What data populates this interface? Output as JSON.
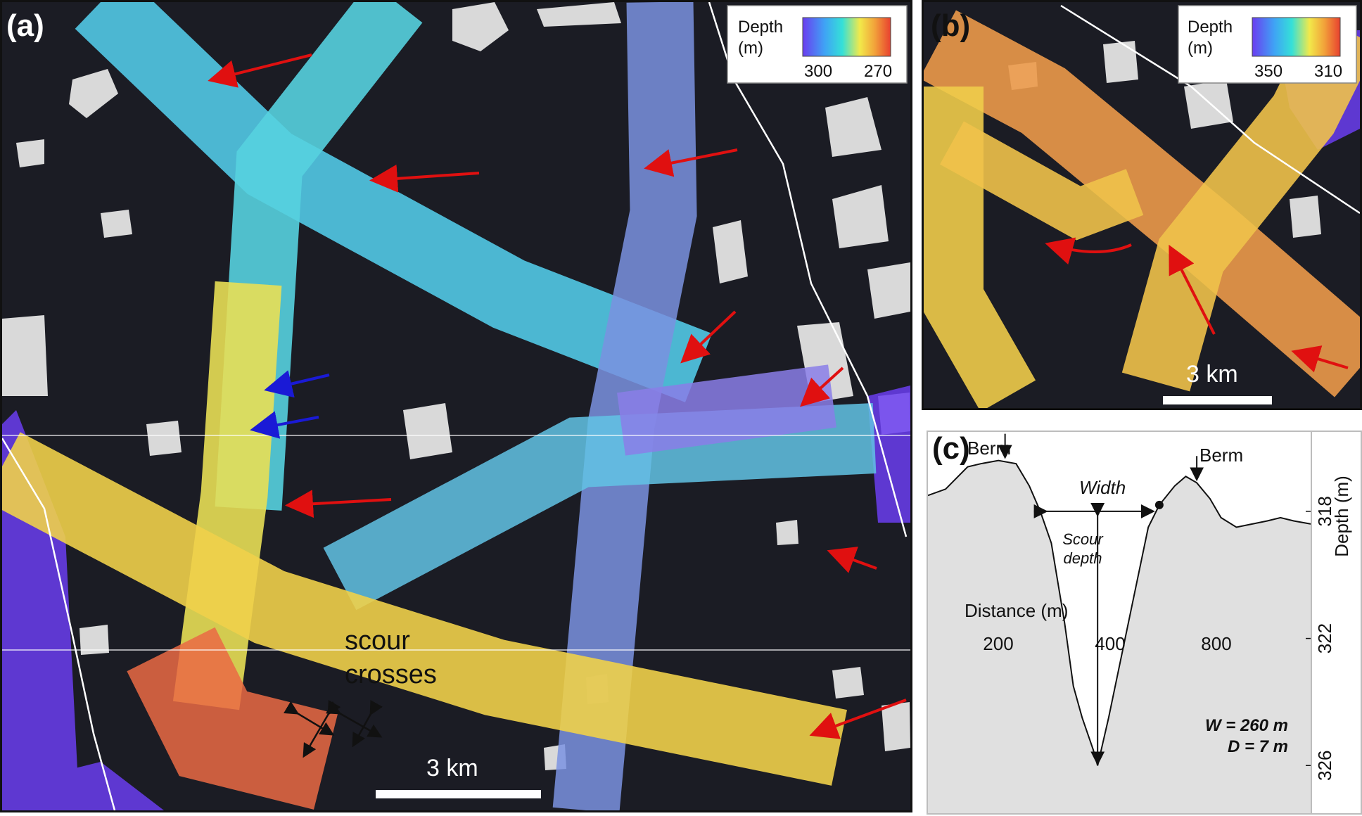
{
  "panel_a": {
    "label": "(a)",
    "legend": {
      "title_line1": "Depth",
      "title_line2": "(m)",
      "min_label": "300",
      "max_label": "270"
    },
    "annotation_line1": "scour",
    "annotation_line2": "crosses",
    "scalebar_label": "3 km"
  },
  "panel_b": {
    "label": "(b)",
    "legend": {
      "title_line1": "Depth",
      "title_line2": "(m)",
      "min_label": "350",
      "max_label": "310"
    },
    "scalebar_label": "3 km"
  },
  "panel_c": {
    "label": "(c)",
    "berm_left": "Berm",
    "berm_right": "Berm",
    "width_label": "Width",
    "scour_depth_line1": "Scour",
    "scour_depth_line2": "depth",
    "w_label": "W = 260 m",
    "d_label": "D = 7 m"
  },
  "colors": {
    "colormap": [
      "#6a3df0",
      "#3fa3f5",
      "#35e0d8",
      "#f2e94a",
      "#f2a23a",
      "#e8402f"
    ],
    "seafloor_dark": "#1b1c24",
    "iceberg": "#d9d9d9",
    "arrow_red": "#e01010",
    "arrow_blue": "#1a1ad6"
  },
  "chart_data": {
    "type": "line",
    "title": "",
    "xlabel": "Distance (m)",
    "ylabel": "Depth (m)",
    "x_ticks": [
      200,
      400,
      800
    ],
    "y_ticks": [
      318,
      322,
      326
    ],
    "ylim": [
      315.5,
      327.5
    ],
    "y_inverted": true,
    "profile_points": [
      [
        0,
        317.5
      ],
      [
        40,
        317.3
      ],
      [
        90,
        316.6
      ],
      [
        120,
        316.5
      ],
      [
        160,
        316.4
      ],
      [
        200,
        316.5
      ],
      [
        230,
        317.2
      ],
      [
        255,
        318.0
      ],
      [
        280,
        319.0
      ],
      [
        310,
        321.5
      ],
      [
        330,
        323.5
      ],
      [
        350,
        324.5
      ],
      [
        375,
        325.5
      ],
      [
        385,
        326.0
      ],
      [
        410,
        324.5
      ],
      [
        440,
        322.5
      ],
      [
        470,
        320.5
      ],
      [
        500,
        318.5
      ],
      [
        525,
        317.8
      ],
      [
        560,
        317.2
      ],
      [
        585,
        316.9
      ],
      [
        610,
        317.1
      ],
      [
        640,
        317.6
      ],
      [
        665,
        318.2
      ],
      [
        700,
        318.5
      ],
      [
        735,
        318.4
      ],
      [
        770,
        318.3
      ],
      [
        800,
        318.2
      ],
      [
        830,
        318.3
      ],
      [
        870,
        318.4
      ]
    ],
    "berm_points": [
      [
        175,
        316.4
      ],
      [
        610,
        317.1
      ]
    ],
    "rim_points": [
      [
        250,
        318.0
      ],
      [
        525,
        317.8
      ]
    ]
  }
}
